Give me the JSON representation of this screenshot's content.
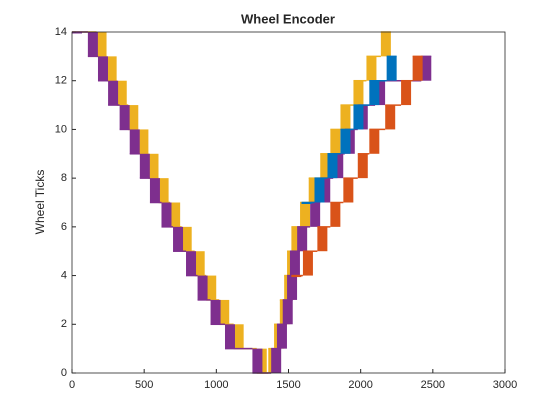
{
  "chart_data": {
    "type": "stairs",
    "title": "Wheel Encoder",
    "y_label": "Wheel Ticks",
    "xlim": [
      0,
      3000
    ],
    "xticks": [
      0,
      500,
      1000,
      1500,
      2000,
      2500,
      3000
    ],
    "ylim": [
      0,
      14
    ],
    "yticks": [
      0,
      2,
      4,
      6,
      8,
      10,
      12,
      14
    ],
    "series": [
      {
        "color": "#EDB120",
        "x": [
          0,
          170,
          240,
          310,
          390,
          460,
          530,
          600,
          680,
          760,
          850,
          930,
          1020,
          1120,
          1280,
          1360,
          1400,
          1440,
          1470,
          1490,
          1520,
          1580,
          1640,
          1720,
          1790,
          1860,
          1950,
          2040,
          2140
        ],
        "values": [
          14,
          13,
          12,
          11,
          10,
          9,
          8,
          7,
          6,
          5,
          4,
          3,
          2,
          1,
          0,
          1,
          2,
          3,
          4,
          5,
          6,
          7,
          8,
          9,
          10,
          11,
          12,
          13,
          14
        ]
      },
      {
        "color": "#7E2F8E",
        "x": [
          0,
          110,
          180,
          250,
          330,
          400,
          470,
          540,
          620,
          700,
          790,
          870,
          960,
          1060,
          1250,
          1380,
          1420,
          1460,
          1490,
          1510,
          1560,
          1650,
          1720,
          1810,
          1890,
          1980,
          2100,
          2420
        ],
        "values": [
          14,
          13,
          12,
          11,
          10,
          9,
          8,
          7,
          6,
          5,
          4,
          3,
          2,
          1,
          0,
          1,
          2,
          3,
          4,
          5,
          6,
          7,
          8,
          9,
          10,
          11,
          12,
          13
        ]
      },
      {
        "color": "#0072BD",
        "x": [
          1590,
          1680,
          1770,
          1860,
          1950,
          2060,
          2180
        ],
        "values": [
          7,
          8,
          9,
          10,
          11,
          12,
          13
        ]
      },
      {
        "color": "#D95319",
        "x": [
          1520,
          1600,
          1700,
          1790,
          1880,
          1980,
          2060,
          2170,
          2280,
          2360
        ],
        "values": [
          4,
          5,
          6,
          7,
          8,
          9,
          10,
          11,
          12,
          13
        ]
      }
    ]
  }
}
